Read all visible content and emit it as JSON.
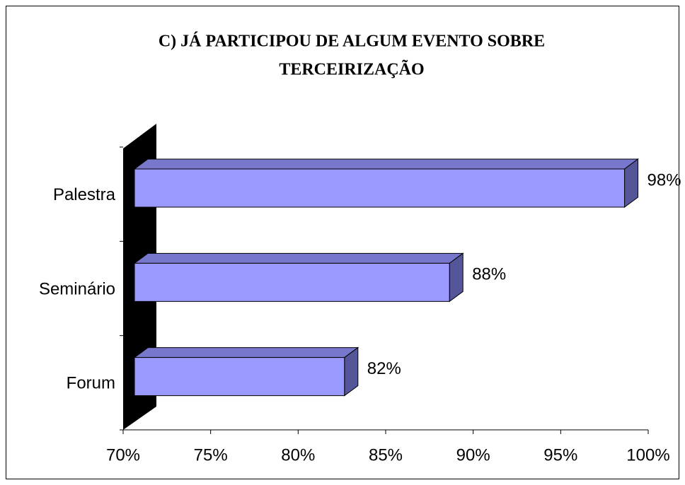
{
  "chart_data": {
    "type": "bar3d_horizontal",
    "title": [
      "C) JÁ PARTICIPOU DE ALGUM EVENTO SOBRE",
      "TERCEIRIZAÇÃO"
    ],
    "categories": [
      "Palestra",
      "Seminário",
      "Forum"
    ],
    "values": [
      98,
      88,
      82
    ],
    "value_labels": [
      "98%",
      "88%",
      "82%"
    ],
    "color": "#9999ff",
    "xlim": [
      70,
      100
    ],
    "xticks": [
      {
        "value": 70,
        "label": "70%"
      },
      {
        "value": 75,
        "label": "75%"
      },
      {
        "value": 80,
        "label": "80%"
      },
      {
        "value": 85,
        "label": "85%"
      },
      {
        "value": 90,
        "label": "90%"
      },
      {
        "value": 95,
        "label": "95%"
      },
      {
        "value": 100,
        "label": "100%"
      }
    ]
  }
}
